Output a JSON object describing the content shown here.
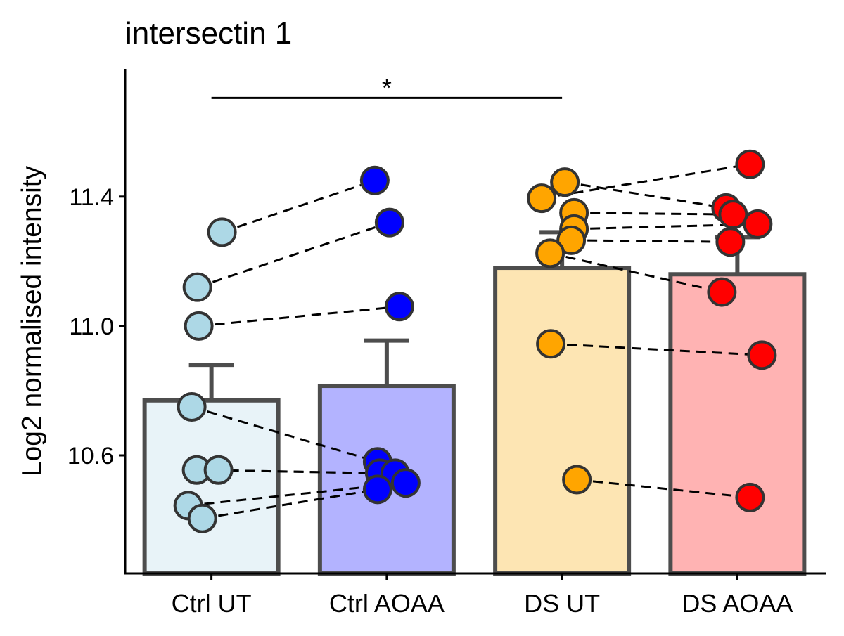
{
  "chart_data": {
    "type": "bar",
    "title": "intersectin 1",
    "xlabel": "",
    "ylabel": "Log2 normalised intensity",
    "ylim": [
      10.235,
      11.795
    ],
    "yticks": [
      10.6,
      11.0,
      11.4
    ],
    "ytick_labels": [
      "10.6",
      "11.0",
      "11.4"
    ],
    "categories": [
      "Ctrl UT",
      "Ctrl AOAA",
      "DS UT",
      "DS AOAA"
    ],
    "grid": false,
    "legend": "none",
    "bar_fill_colors": [
      "#e8f3f8",
      "#b3b3ff",
      "#fde5b3",
      "#ffb3b3"
    ],
    "point_colors": [
      "#add8e6",
      "#0000ff",
      "#ffa500",
      "#ff0000"
    ],
    "bar_outline_color": "#4d4d4d",
    "bars": [
      {
        "category": "Ctrl UT",
        "mean": 10.77,
        "error_upper": 10.88
      },
      {
        "category": "Ctrl AOAA",
        "mean": 10.815,
        "error_upper": 10.955
      },
      {
        "category": "DS UT",
        "mean": 11.18,
        "error_upper": 11.29
      },
      {
        "category": "DS AOAA",
        "mean": 11.16,
        "error_upper": 11.275
      }
    ],
    "points": [
      [
        11.29,
        11.12,
        11.0,
        10.75,
        10.555,
        10.555,
        10.445,
        10.405
      ],
      [
        11.45,
        11.32,
        11.06,
        10.58,
        10.545,
        10.545,
        10.515,
        10.495
      ],
      [
        11.445,
        11.395,
        11.35,
        11.3,
        11.265,
        11.225,
        10.945,
        10.525
      ],
      [
        11.5,
        11.365,
        11.345,
        11.315,
        11.26,
        11.105,
        10.91,
        10.47
      ]
    ],
    "pairs": [
      {
        "from_category": "Ctrl UT",
        "to_category": "Ctrl AOAA",
        "links": [
          [
            11.29,
            11.45
          ],
          [
            11.12,
            11.32
          ],
          [
            11.0,
            11.06
          ],
          [
            10.75,
            10.58
          ],
          [
            10.555,
            10.545
          ],
          [
            10.555,
            10.545
          ],
          [
            10.445,
            10.515
          ],
          [
            10.405,
            10.495
          ]
        ]
      },
      {
        "from_category": "DS UT",
        "to_category": "DS AOAA",
        "links": [
          [
            11.445,
            11.365
          ],
          [
            11.395,
            11.5
          ],
          [
            11.35,
            11.345
          ],
          [
            11.3,
            11.315
          ],
          [
            11.265,
            11.26
          ],
          [
            11.225,
            11.105
          ],
          [
            10.945,
            10.91
          ],
          [
            10.525,
            10.47
          ]
        ]
      }
    ],
    "significance": [
      {
        "from": "Ctrl UT",
        "to": "DS UT",
        "y": 11.705,
        "label": "*"
      }
    ]
  }
}
